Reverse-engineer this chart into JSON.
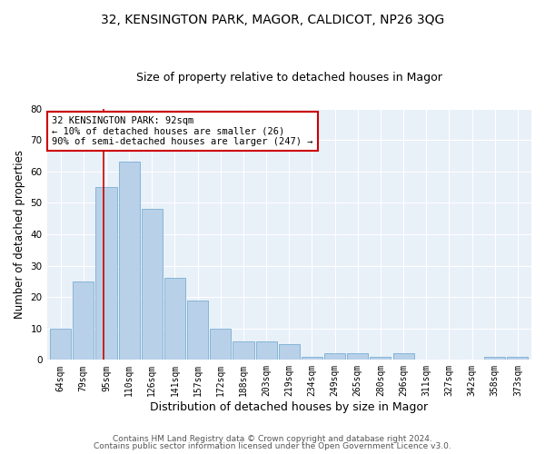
{
  "title": "32, KENSINGTON PARK, MAGOR, CALDICOT, NP26 3QG",
  "subtitle": "Size of property relative to detached houses in Magor",
  "xlabel": "Distribution of detached houses by size in Magor",
  "ylabel": "Number of detached properties",
  "bin_labels": [
    "64sqm",
    "79sqm",
    "95sqm",
    "110sqm",
    "126sqm",
    "141sqm",
    "157sqm",
    "172sqm",
    "188sqm",
    "203sqm",
    "219sqm",
    "234sqm",
    "249sqm",
    "265sqm",
    "280sqm",
    "296sqm",
    "311sqm",
    "327sqm",
    "342sqm",
    "358sqm",
    "373sqm"
  ],
  "bar_values": [
    10,
    25,
    55,
    63,
    48,
    26,
    19,
    10,
    6,
    6,
    5,
    1,
    2,
    2,
    1,
    2,
    0,
    0,
    0,
    1,
    1
  ],
  "bar_color": "#b8d0e8",
  "bar_edge_color": "#7aafd4",
  "vline_x": 1.87,
  "vline_color": "#cc0000",
  "annotation_text": "32 KENSINGTON PARK: 92sqm\n← 10% of detached houses are smaller (26)\n90% of semi-detached houses are larger (247) →",
  "annotation_box_color": "#ffffff",
  "annotation_box_edge": "#cc0000",
  "ylim": [
    0,
    80
  ],
  "yticks": [
    0,
    10,
    20,
    30,
    40,
    50,
    60,
    70,
    80
  ],
  "footer1": "Contains HM Land Registry data © Crown copyright and database right 2024.",
  "footer2": "Contains public sector information licensed under the Open Government Licence v3.0.",
  "bg_color": "#e8f0f8",
  "grid_color": "#ffffff",
  "title_fontsize": 10,
  "subtitle_fontsize": 9,
  "tick_fontsize": 7,
  "ylabel_fontsize": 8.5,
  "xlabel_fontsize": 9,
  "footer_fontsize": 6.5,
  "ann_fontsize": 7.5
}
